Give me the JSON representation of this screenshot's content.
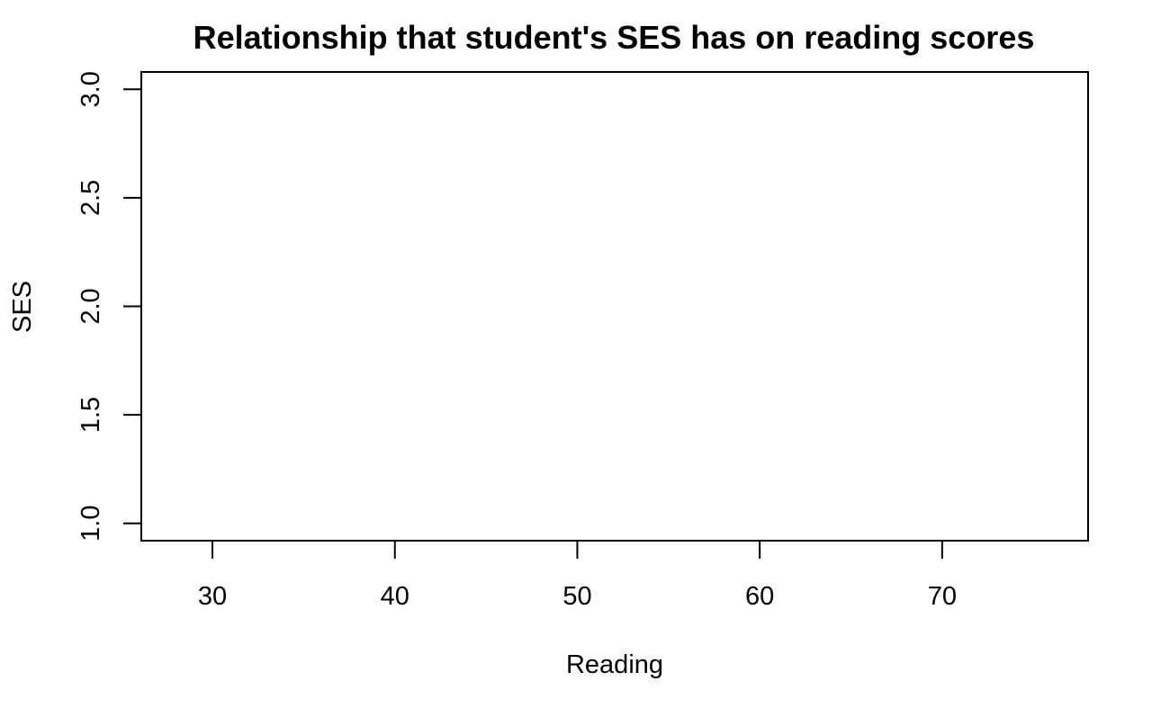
{
  "chart_data": {
    "type": "scatter",
    "title": "Relationship that student's SES has on reading scores",
    "xlabel": "Reading",
    "ylabel": "SES",
    "xlim": [
      26.1,
      78.0
    ],
    "ylim": [
      0.92,
      3.08
    ],
    "xticks": [
      30,
      40,
      50,
      60,
      70
    ],
    "xtick_labels": [
      "30",
      "40",
      "50",
      "60",
      "70"
    ],
    "yticks": [
      1.0,
      1.5,
      2.0,
      2.5,
      3.0
    ],
    "ytick_labels": [
      "1.0",
      "1.5",
      "2.0",
      "2.5",
      "3.0"
    ],
    "grid": false,
    "legend": "none",
    "series": [
      {
        "points": []
      }
    ],
    "colors": {
      "axis": "#000000",
      "background": "#ffffff"
    }
  }
}
